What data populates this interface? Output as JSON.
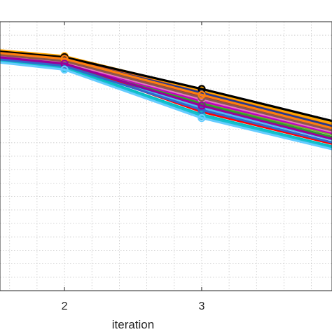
{
  "chart_data": {
    "type": "line",
    "title": "",
    "xlabel": "iteration",
    "ylabel": "",
    "xlim": [
      1.53,
      3.95
    ],
    "ylim": [
      0,
      1
    ],
    "xticks": [
      2,
      3
    ],
    "grid": true,
    "grid_style": "dotted",
    "marker": "circle",
    "x": [
      1,
      2,
      3,
      4
    ],
    "series": [
      {
        "color": "#D95319",
        "values": [
          0.91,
          0.864,
          0.739,
          0.61
        ]
      },
      {
        "color": "#EDB120",
        "values": [
          0.915,
          0.87,
          0.748,
          0.62
        ]
      },
      {
        "color": "#7E2F8E",
        "values": [
          0.905,
          0.858,
          0.72,
          0.595
        ]
      },
      {
        "color": "#77AC30",
        "values": [
          0.9,
          0.852,
          0.7,
          0.575
        ]
      },
      {
        "color": "#4DBEEE",
        "values": [
          0.895,
          0.842,
          0.68,
          0.555
        ]
      },
      {
        "color": "#A2142F",
        "values": [
          0.905,
          0.855,
          0.725,
          0.6
        ]
      },
      {
        "color": "#0072BD",
        "values": [
          0.89,
          0.838,
          0.69,
          0.56
        ]
      },
      {
        "color": "#FF0000",
        "values": [
          0.895,
          0.845,
          0.665,
          0.54
        ]
      },
      {
        "color": "#00BFBF",
        "values": [
          0.885,
          0.832,
          0.655,
          0.53
        ]
      },
      {
        "color": "#BF00BF",
        "values": [
          0.9,
          0.848,
          0.705,
          0.58
        ]
      },
      {
        "color": "#FFA500",
        "values": [
          0.918,
          0.872,
          0.745,
          0.615
        ]
      },
      {
        "color": "#1F3A93",
        "values": [
          0.91,
          0.86,
          0.735,
          0.605
        ]
      },
      {
        "color": "#2CA02C",
        "values": [
          0.892,
          0.84,
          0.695,
          0.565
        ]
      },
      {
        "color": "#000000",
        "values": [
          0.912,
          0.868,
          0.75,
          0.625
        ]
      },
      {
        "color": "#17BECF",
        "values": [
          0.88,
          0.826,
          0.65,
          0.525
        ]
      },
      {
        "color": "#E377C2",
        "values": [
          0.898,
          0.85,
          0.712,
          0.585
        ]
      },
      {
        "color": "#8C564B",
        "values": [
          0.902,
          0.854,
          0.718,
          0.59
        ]
      },
      {
        "color": "#FF7F0E",
        "values": [
          0.908,
          0.862,
          0.728,
          0.598
        ]
      },
      {
        "color": "#3366CC",
        "values": [
          0.887,
          0.836,
          0.672,
          0.545
        ]
      },
      {
        "color": "#990099",
        "values": [
          0.894,
          0.844,
          0.688,
          0.558
        ]
      },
      {
        "color": "#66CCFF",
        "values": [
          0.878,
          0.822,
          0.642,
          0.52
        ]
      }
    ]
  }
}
